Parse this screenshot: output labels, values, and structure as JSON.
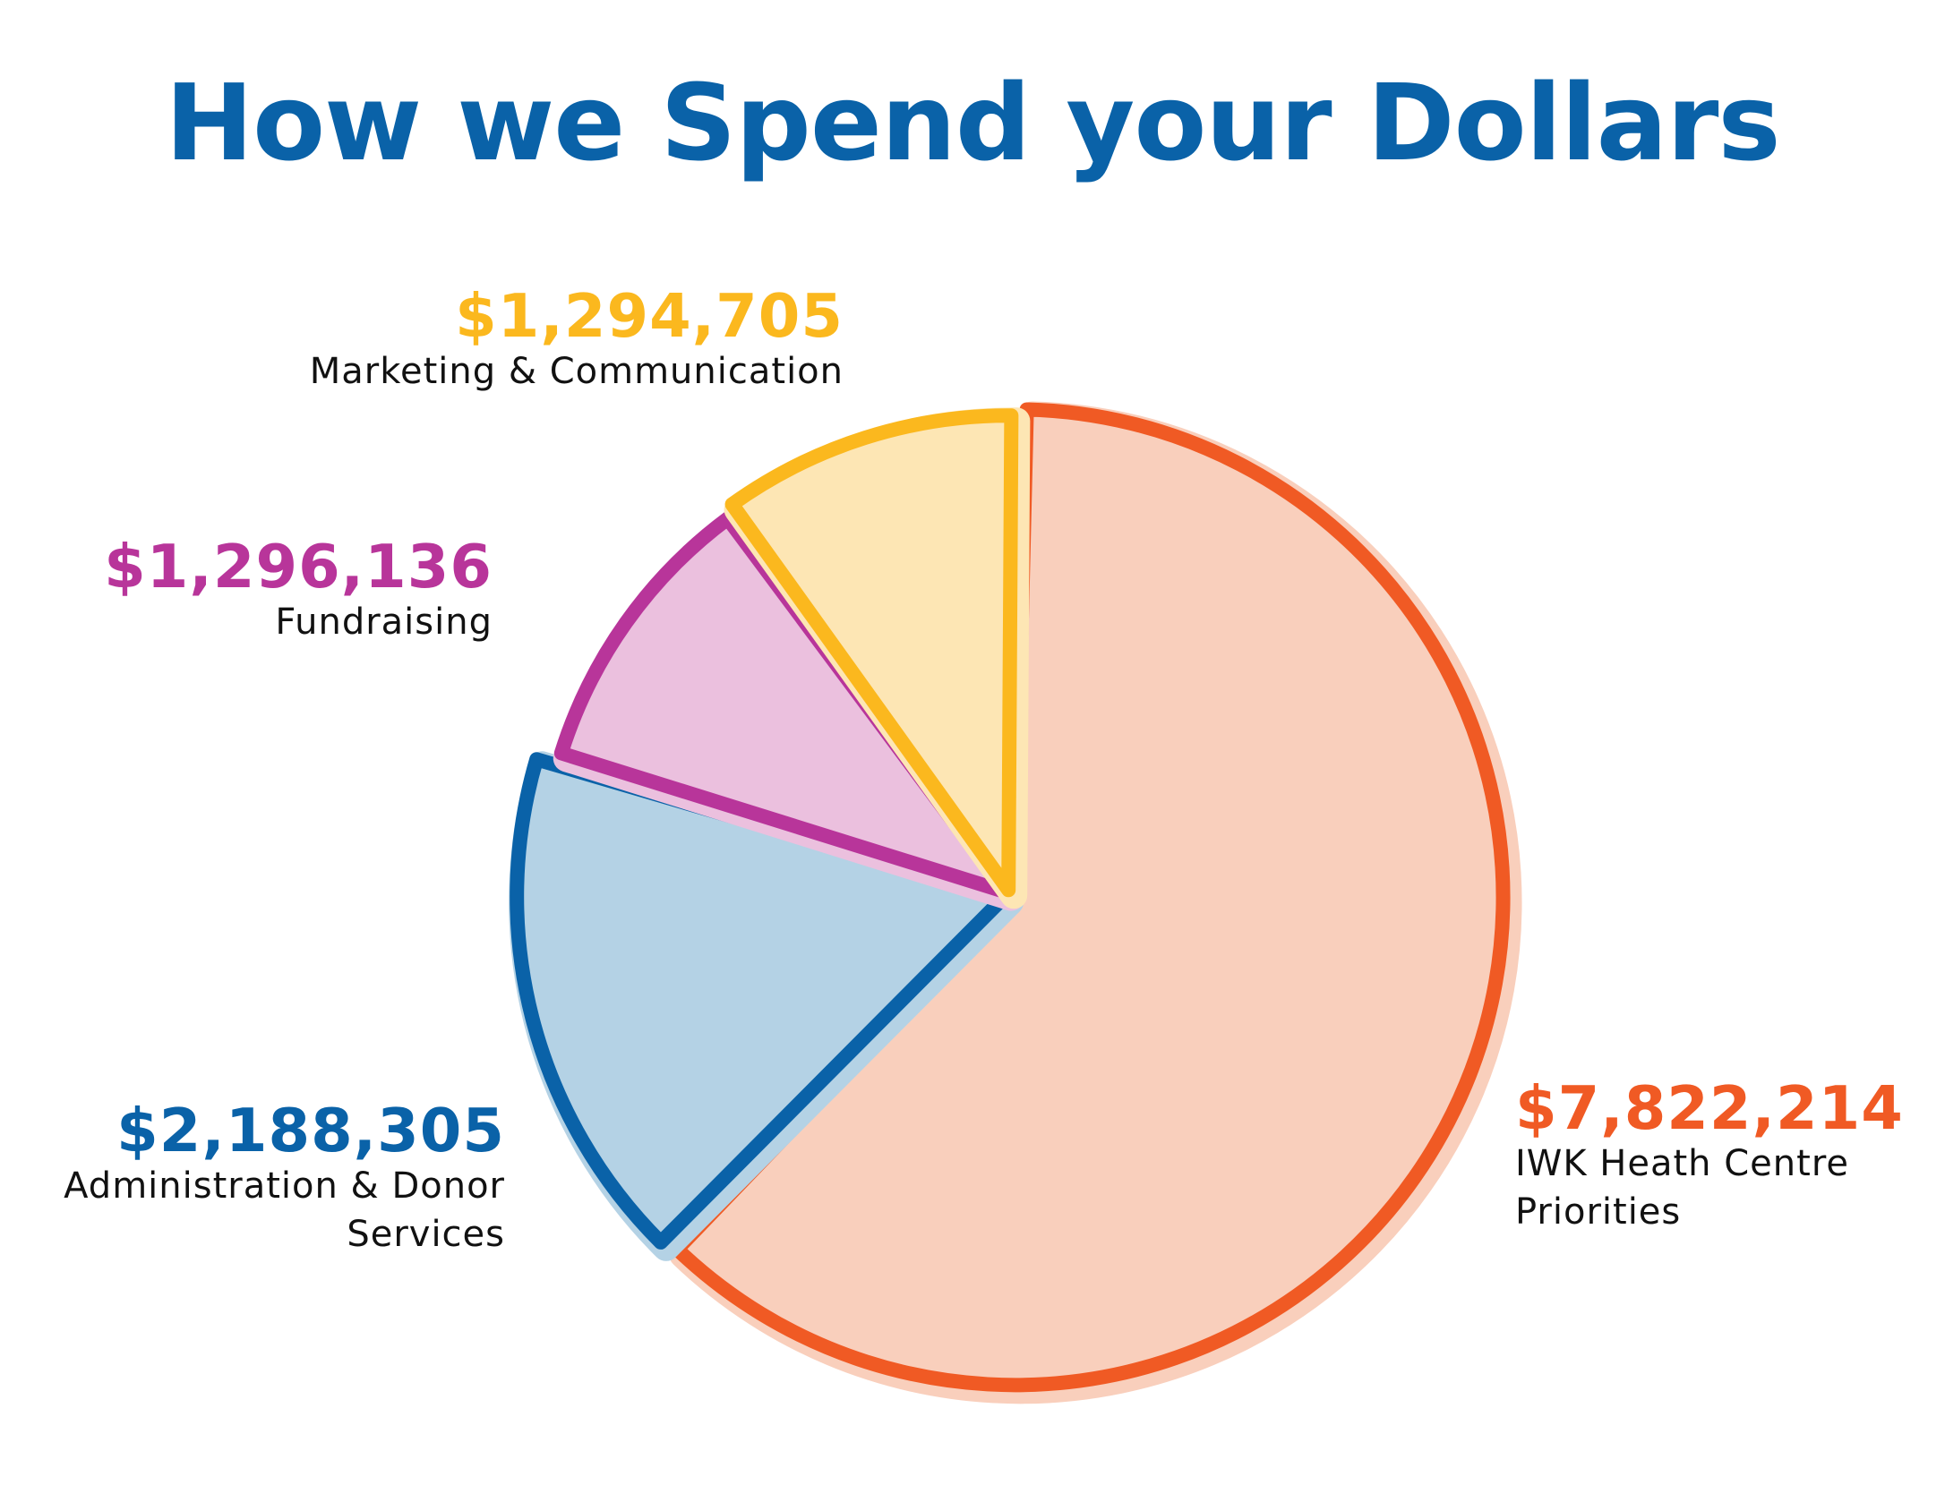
{
  "title": "How we Spend your Dollars",
  "colors": {
    "title": "#0a62a8",
    "iwk": "#f05a24",
    "iwk_fill": "#f9cfbc",
    "admin": "#0a62a8",
    "admin_fill": "#b4d2e5",
    "fundraising": "#b8359a",
    "fundraising_fill": "#ebc0de",
    "marketing": "#fbb81e",
    "marketing_fill": "#fde6b4"
  },
  "chart_data": {
    "type": "pie",
    "title": "How we Spend your Dollars",
    "slices": [
      {
        "key": "iwk",
        "label": "IWK Heath Centre Priorities",
        "amount_text": "$7,822,214",
        "value": 7822214
      },
      {
        "key": "admin",
        "label": "Administration & Donor Services",
        "amount_text": "$2,188,305",
        "value": 2188305
      },
      {
        "key": "fundraising",
        "label": "Fundraising",
        "amount_text": "$1,296,136",
        "value": 1296136
      },
      {
        "key": "marketing",
        "label": "Marketing & Communication",
        "amount_text": "$1,294,705",
        "value": 1294705
      }
    ]
  },
  "labels": {
    "marketing": {
      "amount": "$1,294,705",
      "desc": "Marketing & Communication"
    },
    "fundraising": {
      "amount": "$1,296,136",
      "desc": "Fundraising"
    },
    "admin": {
      "amount": "$2,188,305",
      "desc_line1": "Administration & Donor",
      "desc_line2": "Services"
    },
    "iwk": {
      "amount": "$7,822,214",
      "desc_line1": "IWK Heath Centre",
      "desc_line2": "Priorities"
    }
  }
}
